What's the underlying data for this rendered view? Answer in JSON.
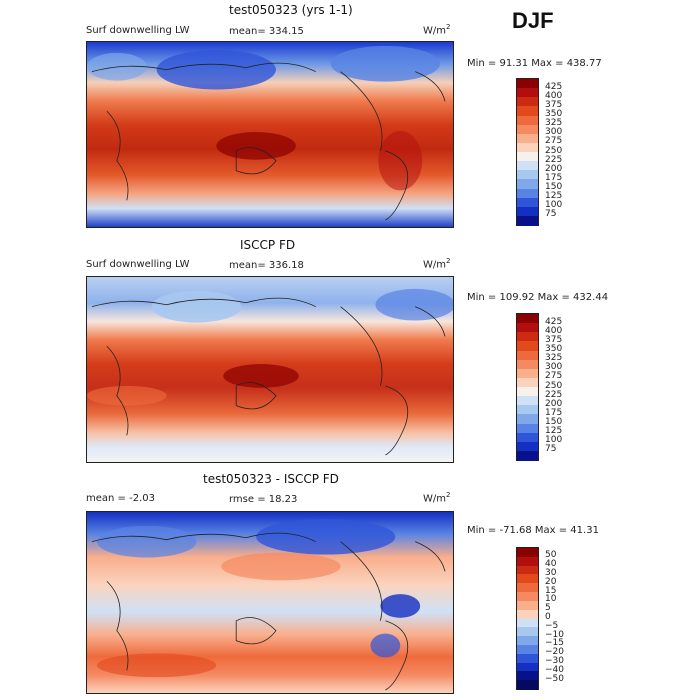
{
  "season": "DJF",
  "panels": [
    {
      "title": "test050323 (yrs 1-1)",
      "variable": "Surf downwelling LW",
      "stat_text": "mean= 334.15",
      "units_base": "W/m",
      "units_exp": "2",
      "minmax_text": "Min =  91.31 Max = 438.77",
      "colorbar_labels": [
        "425",
        "400",
        "375",
        "350",
        "325",
        "300",
        "275",
        "250",
        "225",
        "200",
        "175",
        "150",
        "125",
        "100",
        "75"
      ]
    },
    {
      "title": "ISCCP FD",
      "variable": "Surf downwelling LW",
      "stat_text": "mean= 336.18",
      "units_base": "W/m",
      "units_exp": "2",
      "minmax_text": "Min = 109.92 Max = 432.44",
      "colorbar_labels": [
        "425",
        "400",
        "375",
        "350",
        "325",
        "300",
        "275",
        "250",
        "225",
        "200",
        "175",
        "150",
        "125",
        "100",
        "75"
      ]
    },
    {
      "title": "test050323 - ISCCP FD",
      "mean_text": "mean =  -2.03",
      "rmse_text": "rmse =  18.23",
      "units_base": "W/m",
      "units_exp": "2",
      "minmax_text": "Min = -71.68 Max =  41.31",
      "colorbar_labels": [
        "50",
        "40",
        "30",
        "20",
        "15",
        "10",
        "5",
        "0",
        "−5",
        "−10",
        "−15",
        "−20",
        "−30",
        "−40",
        "−50"
      ]
    }
  ],
  "colors": {
    "absolute_scale": [
      "#8b0000",
      "#b20e0e",
      "#cc2a12",
      "#e24a1e",
      "#ee6a3c",
      "#f58a62",
      "#f9ae8c",
      "#fbd3bd",
      "#f7f1ee",
      "#cfe1f6",
      "#a7c8ef",
      "#7fa7ea",
      "#5883e4",
      "#2f55d8",
      "#1430c2",
      "#08108a"
    ],
    "diff_scale": [
      "#8b0000",
      "#b20e0e",
      "#cc2a12",
      "#e24a1e",
      "#ee6a3c",
      "#f58a62",
      "#f9ae8c",
      "#fbd3bd",
      "#cfe1f6",
      "#a7c8ef",
      "#7fa7ea",
      "#5883e4",
      "#2f55d8",
      "#1430c2",
      "#08108a",
      "#050a60"
    ],
    "land_outline": "#222222"
  }
}
